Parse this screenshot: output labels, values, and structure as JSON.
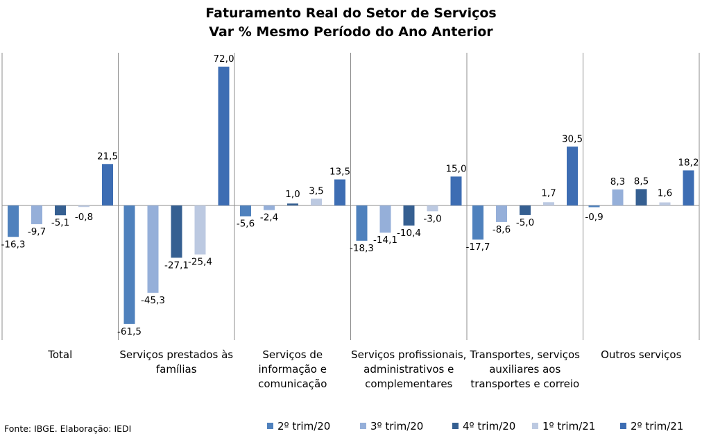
{
  "chart_data": {
    "type": "bar",
    "title": [
      "Faturamento Real do Setor de Serviços",
      "Var % Mesmo Período do Ano Anterior"
    ],
    "categories": [
      [
        "Total"
      ],
      [
        "Serviços prestados às",
        "famílias"
      ],
      [
        "Serviços de",
        "informação e",
        "comunicação"
      ],
      [
        "Serviços profissionais,",
        "administrativos e",
        "complementares"
      ],
      [
        "Transportes, serviços",
        "auxiliares aos",
        "transportes e correio"
      ],
      [
        "Outros serviços"
      ]
    ],
    "series": [
      {
        "name": "2º trim/20",
        "color": "#4F81BD",
        "values": [
          -16.3,
          -61.5,
          -5.6,
          -18.3,
          -17.7,
          -0.9
        ]
      },
      {
        "name": "3º trim/20",
        "color": "#95AFD9",
        "values": [
          -9.7,
          -45.3,
          -2.4,
          -14.1,
          -8.6,
          8.3
        ]
      },
      {
        "name": "4º trim/20",
        "color": "#355F91",
        "values": [
          -5.1,
          -27.1,
          1.0,
          -10.4,
          -5.0,
          8.5
        ]
      },
      {
        "name": "1º trim/21",
        "color": "#BCC9E1",
        "values": [
          -0.8,
          -25.4,
          3.5,
          -3.0,
          1.7,
          1.6
        ]
      },
      {
        "name": "2º trim/21",
        "color": "#3D6DB3",
        "values": [
          21.5,
          72.0,
          13.5,
          15.0,
          30.5,
          18.2
        ]
      }
    ],
    "data_labels": [
      [
        "-16,3",
        "-61,5",
        "-5,6",
        "-18,3",
        "-17,7",
        "-0,9"
      ],
      [
        "-9,7",
        "-45,3",
        "-2,4",
        "-14,1",
        "-8,6",
        "8,3"
      ],
      [
        "-5,1",
        "-27,1",
        "1,0",
        "-10,4",
        "-5,0",
        "8,5"
      ],
      [
        "-0,8",
        "-25,4",
        "3,5",
        "-3,0",
        "1,7",
        "1,6"
      ],
      [
        "21,5",
        "72,0",
        "13,5",
        "15,0",
        "30,5",
        "18,2"
      ]
    ],
    "ylim": [
      -66,
      72
    ],
    "grid": false,
    "legend_position": "bottom-right",
    "source": "Fonte: IBGE. Elaboração: IEDI"
  }
}
